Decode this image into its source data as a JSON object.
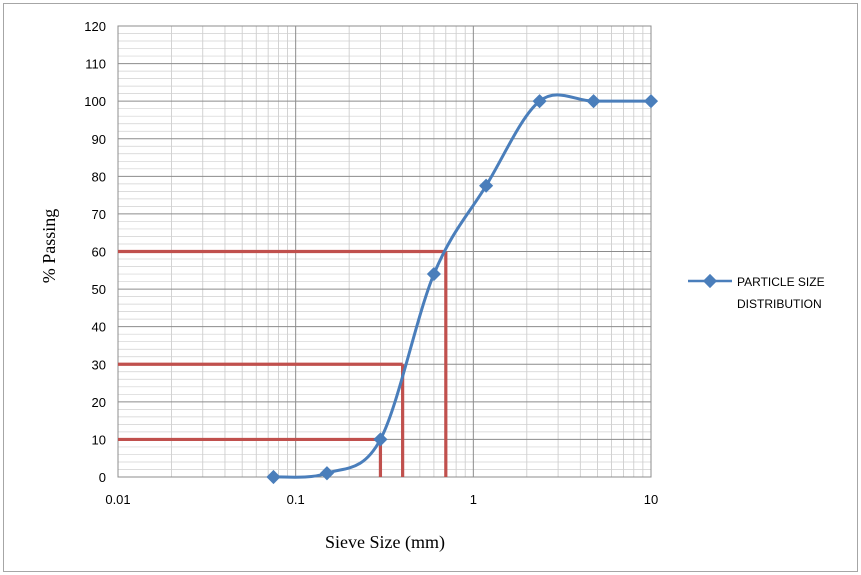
{
  "chart_data": {
    "type": "line",
    "xlabel": "Sieve Size (mm)",
    "ylabel": "% Passing",
    "x_scale": "log",
    "xlim": [
      0.01,
      10
    ],
    "ylim": [
      0,
      120
    ],
    "x_ticks": [
      "0.01",
      "0.1",
      "1",
      "10"
    ],
    "y_ticks": [
      "0",
      "10",
      "20",
      "30",
      "40",
      "50",
      "60",
      "70",
      "80",
      "90",
      "100",
      "110",
      "120"
    ],
    "grid": "major and minor",
    "legend_position": "right",
    "series": [
      {
        "name": "PARTICLE SIZE DISTRIBUTION",
        "color": "#4a7ebb",
        "marker": "diamond",
        "smooth": true,
        "x": [
          0.075,
          0.15,
          0.3,
          0.6,
          1.18,
          2.36,
          4.75,
          10
        ],
        "y": [
          0,
          1,
          10,
          54,
          77.5,
          100,
          100,
          100
        ]
      }
    ],
    "reference_lines": {
      "color": "#c0504d",
      "lines": [
        {
          "y": 10,
          "x": 0.3
        },
        {
          "y": 30,
          "x": 0.4
        },
        {
          "y": 60,
          "x": 0.7
        }
      ]
    }
  }
}
